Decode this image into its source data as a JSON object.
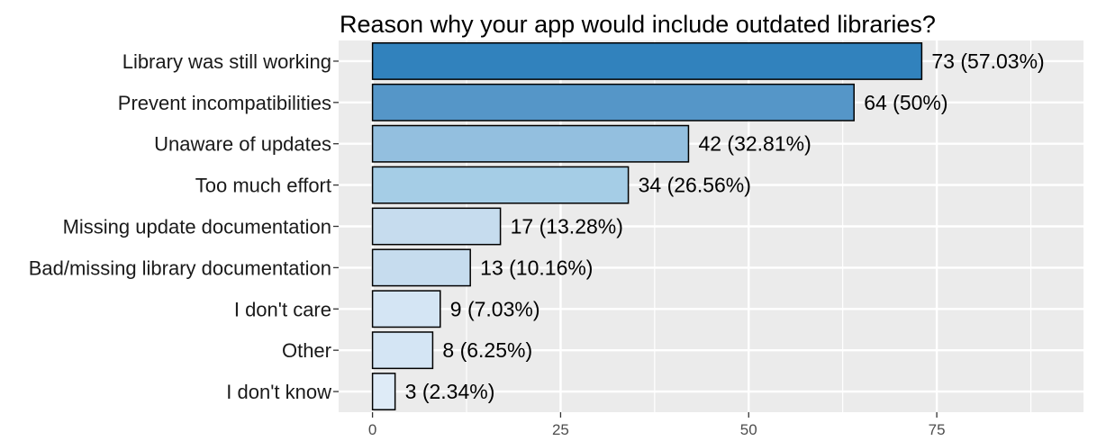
{
  "chart_data": {
    "type": "bar",
    "orientation": "horizontal",
    "title": "Reason why your app would include outdated libraries?",
    "xlabel": "",
    "ylabel": "",
    "categories": [
      "Library was still working",
      "Prevent incompatibilities",
      "Unaware of updates",
      "Too much effort",
      "Missing update documentation",
      "Bad/missing library documentation",
      "I don't care",
      "Other",
      "I don't know"
    ],
    "values": [
      73,
      64,
      42,
      34,
      17,
      13,
      9,
      8,
      3
    ],
    "data_labels": [
      "73 (57.03%)",
      "64 (50%)",
      "42 (32.81%)",
      "34 (26.56%)",
      "17 (13.28%)",
      "13 (10.16%)",
      "9 (7.03%)",
      "8 (6.25%)",
      "3 (2.34%)"
    ],
    "bar_colors": [
      "#3182bd",
      "#5596c8",
      "#93bfdf",
      "#a5cde6",
      "#c6dcee",
      "#c6dcee",
      "#d4e5f4",
      "#d4e5f4",
      "#deebf7"
    ],
    "xlim": [
      -4.5,
      94.5
    ],
    "x_ticks": [
      0,
      25,
      50,
      75
    ],
    "x_tick_labels": [
      "0",
      "25",
      "50",
      "75"
    ],
    "grid": true,
    "panel_background": "#ebebeb",
    "bar_outline": "#000000"
  }
}
